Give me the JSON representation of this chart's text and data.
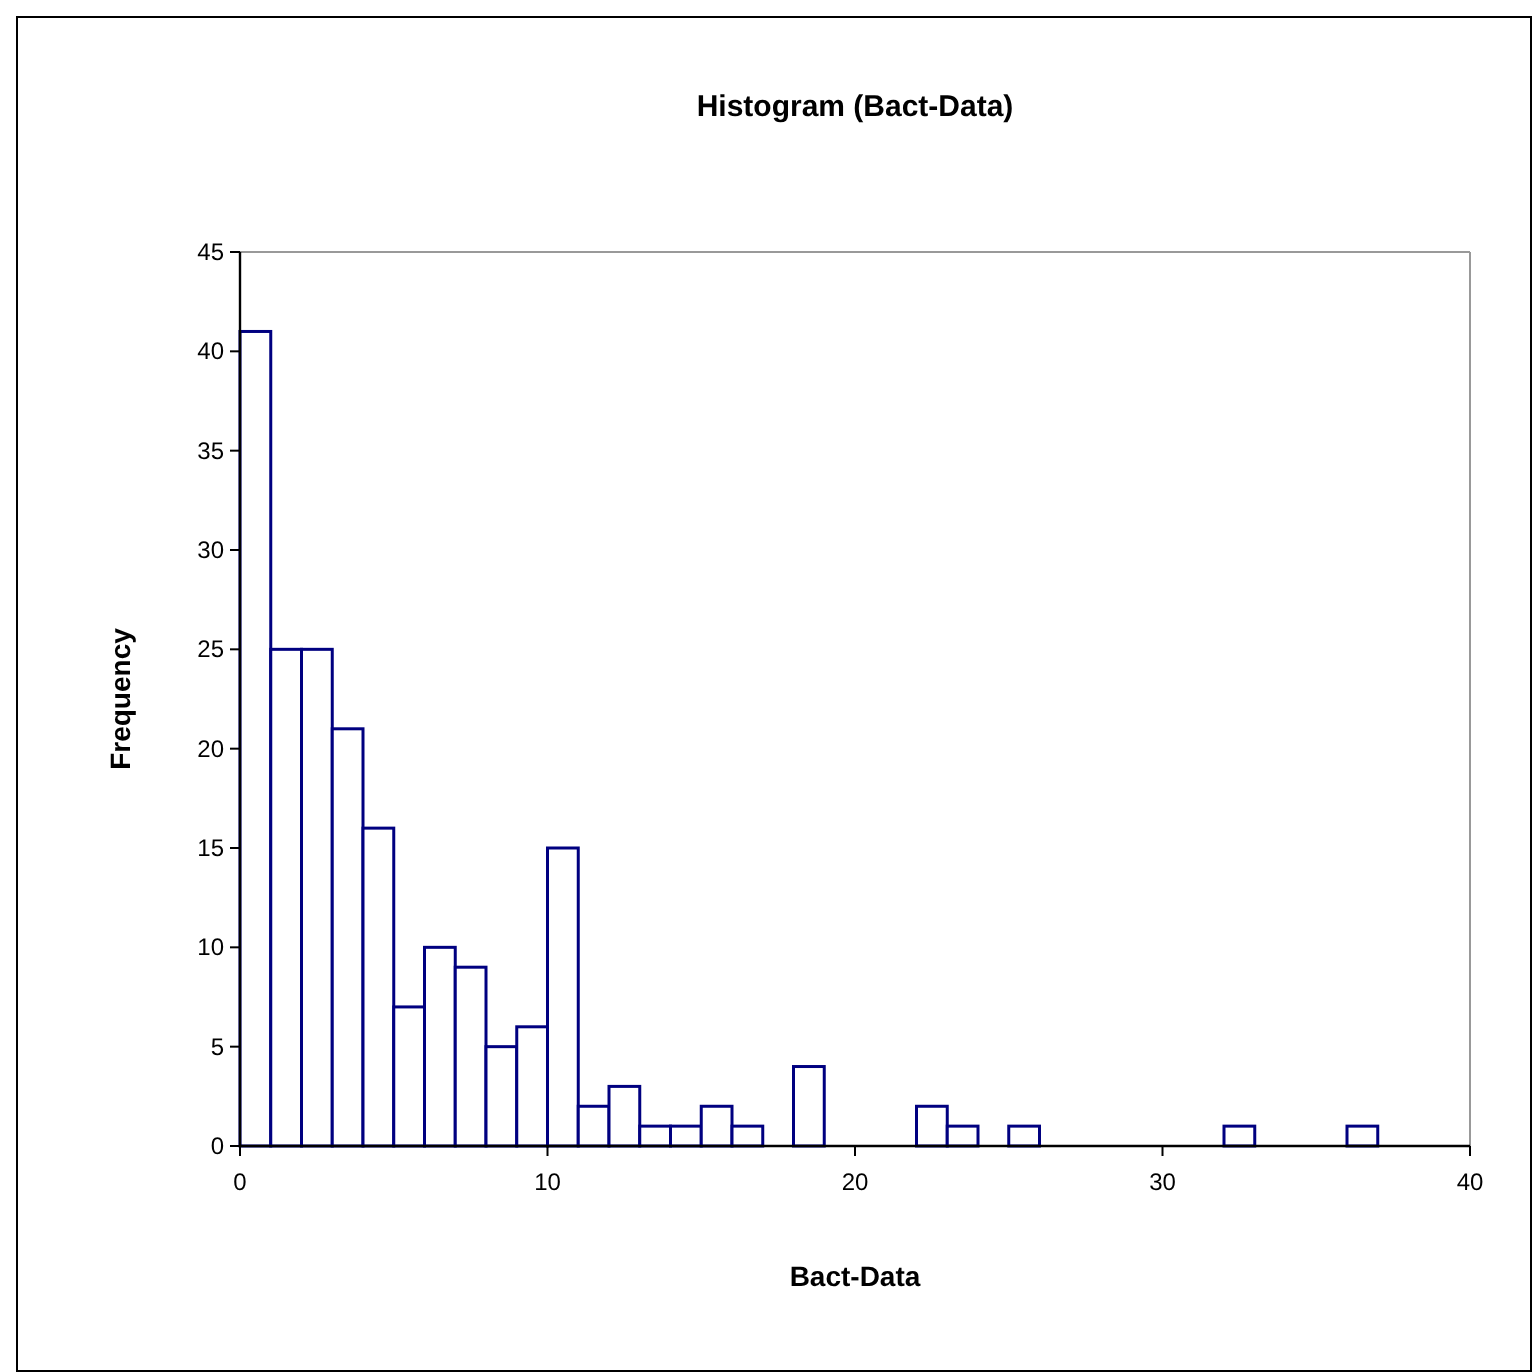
{
  "chart_data": {
    "type": "histogram",
    "title": "Histogram (Bact-Data)",
    "xlabel": "Bact-Data",
    "ylabel": "Frequency",
    "bins": [
      0,
      1,
      2,
      3,
      4,
      5,
      6,
      7,
      8,
      9,
      10,
      11,
      12,
      13,
      14,
      15,
      16,
      17,
      18,
      19,
      20,
      21,
      22,
      23,
      24,
      25,
      26,
      27,
      28,
      29,
      30,
      31,
      32,
      33,
      34,
      35,
      36,
      37,
      38
    ],
    "values": [
      41,
      25,
      25,
      21,
      16,
      7,
      10,
      9,
      5,
      6,
      15,
      2,
      3,
      1,
      1,
      2,
      1,
      0,
      4,
      0,
      0,
      0,
      2,
      1,
      0,
      1,
      0,
      0,
      0,
      0,
      0,
      0,
      1,
      0,
      0,
      0,
      1,
      0
    ],
    "color": "#000080",
    "xlim": [
      0,
      40
    ],
    "xticks": [
      0,
      10,
      20,
      30,
      40
    ],
    "ylim": [
      0,
      45
    ],
    "yticks": [
      0,
      5,
      10,
      15,
      20,
      25,
      30,
      35,
      40,
      45
    ],
    "grid": false
  }
}
